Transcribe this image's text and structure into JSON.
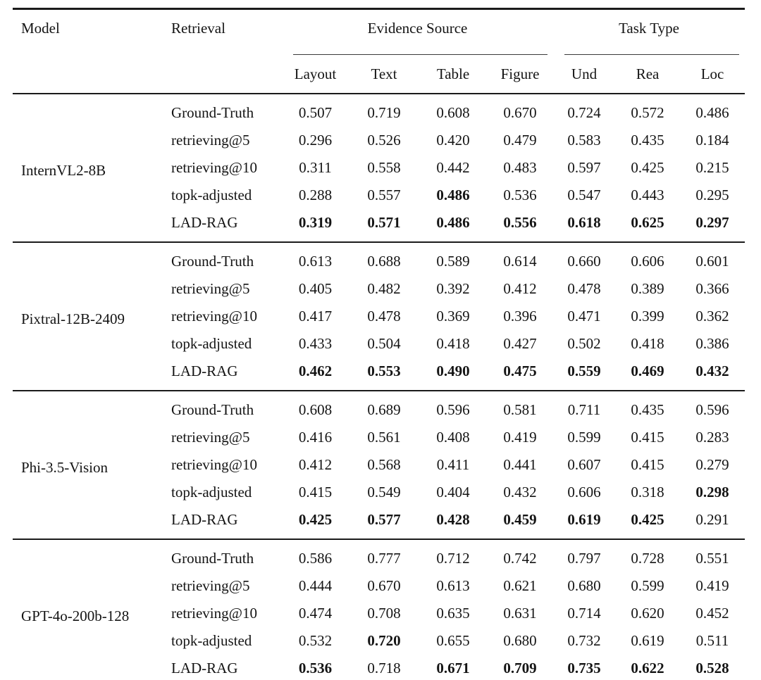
{
  "style": {
    "background": "#ffffff",
    "text_color": "#141414",
    "rule_color": "#1b1b1b"
  },
  "table": {
    "header": {
      "model_label": "Model",
      "retrieval_label": "Retrieval",
      "groups": [
        {
          "label": "Evidence Source",
          "columns": [
            "Layout",
            "Text",
            "Table",
            "Figure"
          ]
        },
        {
          "label": "Task Type",
          "columns": [
            "Und",
            "Rea",
            "Loc"
          ]
        }
      ]
    },
    "blocks": [
      {
        "model": "InternVL2-8B",
        "rows": [
          {
            "retrieval": "Ground-Truth",
            "values": [
              "0.507",
              "0.719",
              "0.608",
              "0.670",
              "0.724",
              "0.572",
              "0.486"
            ],
            "bold": [
              0,
              0,
              0,
              0,
              0,
              0,
              0
            ]
          },
          {
            "retrieval": "retrieving@5",
            "values": [
              "0.296",
              "0.526",
              "0.420",
              "0.479",
              "0.583",
              "0.435",
              "0.184"
            ],
            "bold": [
              0,
              0,
              0,
              0,
              0,
              0,
              0
            ]
          },
          {
            "retrieval": "retrieving@10",
            "values": [
              "0.311",
              "0.558",
              "0.442",
              "0.483",
              "0.597",
              "0.425",
              "0.215"
            ],
            "bold": [
              0,
              0,
              0,
              0,
              0,
              0,
              0
            ]
          },
          {
            "retrieval": "topk-adjusted",
            "values": [
              "0.288",
              "0.557",
              "0.486",
              "0.536",
              "0.547",
              "0.443",
              "0.295"
            ],
            "bold": [
              0,
              0,
              1,
              0,
              0,
              0,
              0
            ]
          },
          {
            "retrieval": "LAD-RAG",
            "values": [
              "0.319",
              "0.571",
              "0.486",
              "0.556",
              "0.618",
              "0.625",
              "0.297"
            ],
            "bold": [
              1,
              1,
              1,
              1,
              1,
              1,
              1
            ]
          }
        ]
      },
      {
        "model": "Pixtral-12B-2409",
        "rows": [
          {
            "retrieval": "Ground-Truth",
            "values": [
              "0.613",
              "0.688",
              "0.589",
              "0.614",
              "0.660",
              "0.606",
              "0.601"
            ],
            "bold": [
              0,
              0,
              0,
              0,
              0,
              0,
              0
            ]
          },
          {
            "retrieval": "retrieving@5",
            "values": [
              "0.405",
              "0.482",
              "0.392",
              "0.412",
              "0.478",
              "0.389",
              "0.366"
            ],
            "bold": [
              0,
              0,
              0,
              0,
              0,
              0,
              0
            ]
          },
          {
            "retrieval": "retrieving@10",
            "values": [
              "0.417",
              "0.478",
              "0.369",
              "0.396",
              "0.471",
              "0.399",
              "0.362"
            ],
            "bold": [
              0,
              0,
              0,
              0,
              0,
              0,
              0
            ]
          },
          {
            "retrieval": "topk-adjusted",
            "values": [
              "0.433",
              "0.504",
              "0.418",
              "0.427",
              "0.502",
              "0.418",
              "0.386"
            ],
            "bold": [
              0,
              0,
              0,
              0,
              0,
              0,
              0
            ]
          },
          {
            "retrieval": "LAD-RAG",
            "values": [
              "0.462",
              "0.553",
              "0.490",
              "0.475",
              "0.559",
              "0.469",
              "0.432"
            ],
            "bold": [
              1,
              1,
              1,
              1,
              1,
              1,
              1
            ]
          }
        ]
      },
      {
        "model": "Phi-3.5-Vision",
        "rows": [
          {
            "retrieval": "Ground-Truth",
            "values": [
              "0.608",
              "0.689",
              "0.596",
              "0.581",
              "0.711",
              "0.435",
              "0.596"
            ],
            "bold": [
              0,
              0,
              0,
              0,
              0,
              0,
              0
            ]
          },
          {
            "retrieval": "retrieving@5",
            "values": [
              "0.416",
              "0.561",
              "0.408",
              "0.419",
              "0.599",
              "0.415",
              "0.283"
            ],
            "bold": [
              0,
              0,
              0,
              0,
              0,
              0,
              0
            ]
          },
          {
            "retrieval": "retrieving@10",
            "values": [
              "0.412",
              "0.568",
              "0.411",
              "0.441",
              "0.607",
              "0.415",
              "0.279"
            ],
            "bold": [
              0,
              0,
              0,
              0,
              0,
              0,
              0
            ]
          },
          {
            "retrieval": "topk-adjusted",
            "values": [
              "0.415",
              "0.549",
              "0.404",
              "0.432",
              "0.606",
              "0.318",
              "0.298"
            ],
            "bold": [
              0,
              0,
              0,
              0,
              0,
              0,
              1
            ]
          },
          {
            "retrieval": "LAD-RAG",
            "values": [
              "0.425",
              "0.577",
              "0.428",
              "0.459",
              "0.619",
              "0.425",
              "0.291"
            ],
            "bold": [
              1,
              1,
              1,
              1,
              1,
              1,
              0
            ]
          }
        ]
      },
      {
        "model": "GPT-4o-200b-128",
        "rows": [
          {
            "retrieval": "Ground-Truth",
            "values": [
              "0.586",
              "0.777",
              "0.712",
              "0.742",
              "0.797",
              "0.728",
              "0.551"
            ],
            "bold": [
              0,
              0,
              0,
              0,
              0,
              0,
              0
            ]
          },
          {
            "retrieval": "retrieving@5",
            "values": [
              "0.444",
              "0.670",
              "0.613",
              "0.621",
              "0.680",
              "0.599",
              "0.419"
            ],
            "bold": [
              0,
              0,
              0,
              0,
              0,
              0,
              0
            ]
          },
          {
            "retrieval": "retrieving@10",
            "values": [
              "0.474",
              "0.708",
              "0.635",
              "0.631",
              "0.714",
              "0.620",
              "0.452"
            ],
            "bold": [
              0,
              0,
              0,
              0,
              0,
              0,
              0
            ]
          },
          {
            "retrieval": "topk-adjusted",
            "values": [
              "0.532",
              "0.720",
              "0.655",
              "0.680",
              "0.732",
              "0.619",
              "0.511"
            ],
            "bold": [
              0,
              1,
              0,
              0,
              0,
              0,
              0
            ]
          },
          {
            "retrieval": "LAD-RAG",
            "values": [
              "0.536",
              "0.718",
              "0.671",
              "0.709",
              "0.735",
              "0.622",
              "0.528"
            ],
            "bold": [
              1,
              0,
              1,
              1,
              1,
              1,
              1
            ]
          }
        ]
      }
    ]
  }
}
